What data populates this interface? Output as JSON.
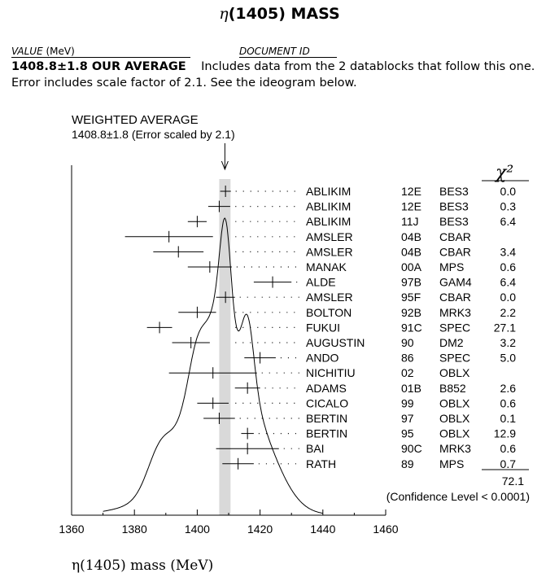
{
  "title": {
    "particle": "η",
    "text": "(1405) MASS"
  },
  "header": {
    "value_label": "VALUE",
    "value_unit": "(MeV)",
    "document_label": "DOCUMENT ID"
  },
  "average": {
    "value": "1408.8±1.8 OUR AVERAGE",
    "note": "Includes data from the 2 datablocks that follow this one. Error includes scale factor of 2.1. See the ideogram below."
  },
  "chart_data": {
    "type": "scatter",
    "title": "WEIGHTED AVERAGE",
    "subtitle": "1408.8±1.8 (Error scaled by 2.1)",
    "xlabel": "η(1405) mass (MeV)",
    "xlim": [
      1360,
      1460
    ],
    "x_ticks": [
      1360,
      1380,
      1400,
      1420,
      1440,
      1460
    ],
    "average": {
      "value": 1408.8,
      "error": 1.8
    },
    "chi2_header": "χ²",
    "measurements": [
      {
        "author": "ABLIKIM",
        "year": "12E",
        "experiment": "BES3",
        "chi2": "0.0",
        "value": 1409.0,
        "error": 1.7
      },
      {
        "author": "ABLIKIM",
        "year": "12E",
        "experiment": "BES3",
        "chi2": "0.3",
        "value": 1407.0,
        "error": 3.5
      },
      {
        "author": "ABLIKIM",
        "year": "11J",
        "experiment": "BES3",
        "chi2": "6.4",
        "value": 1400.0,
        "error": 3.0
      },
      {
        "author": "AMSLER",
        "year": "04B",
        "experiment": "CBAR",
        "chi2": "",
        "value": 1391.0,
        "error": 14.0
      },
      {
        "author": "AMSLER",
        "year": "04B",
        "experiment": "CBAR",
        "chi2": "3.4",
        "value": 1394.0,
        "error": 8.0
      },
      {
        "author": "MANAK",
        "year": "00A",
        "experiment": "MPS",
        "chi2": "0.6",
        "value": 1404.0,
        "error": 7.0
      },
      {
        "author": "ALDE",
        "year": "97B",
        "experiment": "GAM4",
        "chi2": "6.4",
        "value": 1424.0,
        "error": 6.0
      },
      {
        "author": "AMSLER",
        "year": "95F",
        "experiment": "CBAR",
        "chi2": "0.0",
        "value": 1409.0,
        "error": 3.0
      },
      {
        "author": "BOLTON",
        "year": "92B",
        "experiment": "MRK3",
        "chi2": "2.2",
        "value": 1400.0,
        "error": 6.0
      },
      {
        "author": "FUKUI",
        "year": "91C",
        "experiment": "SPEC",
        "chi2": "27.1",
        "value": 1388.0,
        "error": 4.0
      },
      {
        "author": "AUGUSTIN",
        "year": "90",
        "experiment": "DM2",
        "chi2": "3.2",
        "value": 1398.0,
        "error": 6.0
      },
      {
        "author": "ANDO",
        "year": "86",
        "experiment": "SPEC",
        "chi2": "5.0",
        "value": 1420.0,
        "error": 5.0
      },
      {
        "author": "NICHITIU",
        "year": "02",
        "experiment": "OBLX",
        "chi2": "",
        "value": 1405.0,
        "error": 14.0
      },
      {
        "author": "ADAMS",
        "year": "01B",
        "experiment": "B852",
        "chi2": "2.6",
        "value": 1416.0,
        "error": 4.0
      },
      {
        "author": "CICALO",
        "year": "99",
        "experiment": "OBLX",
        "chi2": "0.6",
        "value": 1405.0,
        "error": 5.0
      },
      {
        "author": "BERTIN",
        "year": "97",
        "experiment": "OBLX",
        "chi2": "0.1",
        "value": 1407.0,
        "error": 5.0
      },
      {
        "author": "BERTIN",
        "year": "95",
        "experiment": "OBLX",
        "chi2": "12.9",
        "value": 1416.0,
        "error": 2.0
      },
      {
        "author": "BAI",
        "year": "90C",
        "experiment": "MRK3",
        "chi2": "0.6",
        "value": 1416.0,
        "error": 10.0
      },
      {
        "author": "RATH",
        "year": "89",
        "experiment": "MPS",
        "chi2": "0.7",
        "value": 1413.0,
        "error": 5.0
      }
    ],
    "chi2_total": "72.1",
    "confidence": "(Confidence Level < 0.0001)"
  }
}
